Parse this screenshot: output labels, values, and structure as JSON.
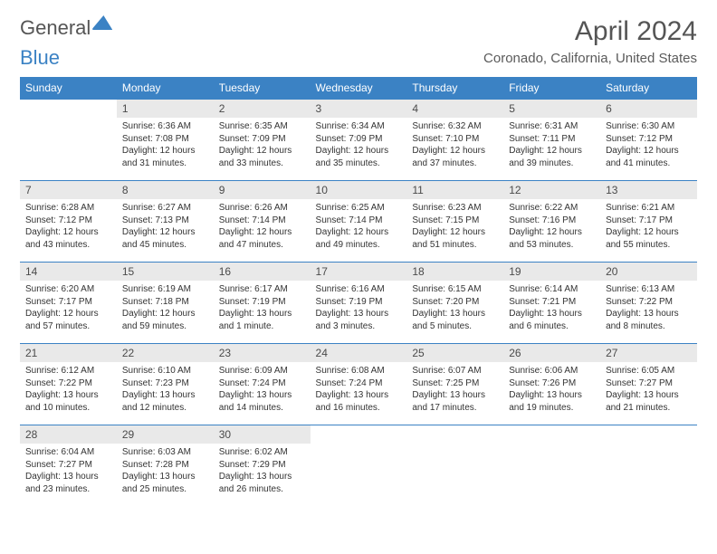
{
  "brand": {
    "part1": "General",
    "part2": "Blue"
  },
  "title": "April 2024",
  "location": "Coronado, California, United States",
  "colors": {
    "header_bg": "#3b82c4",
    "header_text": "#ffffff",
    "daynum_bg": "#e9e9e9",
    "border": "#3b82c4",
    "text": "#333333",
    "title_color": "#555555"
  },
  "days_of_week": [
    "Sunday",
    "Monday",
    "Tuesday",
    "Wednesday",
    "Thursday",
    "Friday",
    "Saturday"
  ],
  "weeks": [
    [
      null,
      {
        "n": "1",
        "sr": "Sunrise: 6:36 AM",
        "ss": "Sunset: 7:08 PM",
        "d1": "Daylight: 12 hours",
        "d2": "and 31 minutes."
      },
      {
        "n": "2",
        "sr": "Sunrise: 6:35 AM",
        "ss": "Sunset: 7:09 PM",
        "d1": "Daylight: 12 hours",
        "d2": "and 33 minutes."
      },
      {
        "n": "3",
        "sr": "Sunrise: 6:34 AM",
        "ss": "Sunset: 7:09 PM",
        "d1": "Daylight: 12 hours",
        "d2": "and 35 minutes."
      },
      {
        "n": "4",
        "sr": "Sunrise: 6:32 AM",
        "ss": "Sunset: 7:10 PM",
        "d1": "Daylight: 12 hours",
        "d2": "and 37 minutes."
      },
      {
        "n": "5",
        "sr": "Sunrise: 6:31 AM",
        "ss": "Sunset: 7:11 PM",
        "d1": "Daylight: 12 hours",
        "d2": "and 39 minutes."
      },
      {
        "n": "6",
        "sr": "Sunrise: 6:30 AM",
        "ss": "Sunset: 7:12 PM",
        "d1": "Daylight: 12 hours",
        "d2": "and 41 minutes."
      }
    ],
    [
      {
        "n": "7",
        "sr": "Sunrise: 6:28 AM",
        "ss": "Sunset: 7:12 PM",
        "d1": "Daylight: 12 hours",
        "d2": "and 43 minutes."
      },
      {
        "n": "8",
        "sr": "Sunrise: 6:27 AM",
        "ss": "Sunset: 7:13 PM",
        "d1": "Daylight: 12 hours",
        "d2": "and 45 minutes."
      },
      {
        "n": "9",
        "sr": "Sunrise: 6:26 AM",
        "ss": "Sunset: 7:14 PM",
        "d1": "Daylight: 12 hours",
        "d2": "and 47 minutes."
      },
      {
        "n": "10",
        "sr": "Sunrise: 6:25 AM",
        "ss": "Sunset: 7:14 PM",
        "d1": "Daylight: 12 hours",
        "d2": "and 49 minutes."
      },
      {
        "n": "11",
        "sr": "Sunrise: 6:23 AM",
        "ss": "Sunset: 7:15 PM",
        "d1": "Daylight: 12 hours",
        "d2": "and 51 minutes."
      },
      {
        "n": "12",
        "sr": "Sunrise: 6:22 AM",
        "ss": "Sunset: 7:16 PM",
        "d1": "Daylight: 12 hours",
        "d2": "and 53 minutes."
      },
      {
        "n": "13",
        "sr": "Sunrise: 6:21 AM",
        "ss": "Sunset: 7:17 PM",
        "d1": "Daylight: 12 hours",
        "d2": "and 55 minutes."
      }
    ],
    [
      {
        "n": "14",
        "sr": "Sunrise: 6:20 AM",
        "ss": "Sunset: 7:17 PM",
        "d1": "Daylight: 12 hours",
        "d2": "and 57 minutes."
      },
      {
        "n": "15",
        "sr": "Sunrise: 6:19 AM",
        "ss": "Sunset: 7:18 PM",
        "d1": "Daylight: 12 hours",
        "d2": "and 59 minutes."
      },
      {
        "n": "16",
        "sr": "Sunrise: 6:17 AM",
        "ss": "Sunset: 7:19 PM",
        "d1": "Daylight: 13 hours",
        "d2": "and 1 minute."
      },
      {
        "n": "17",
        "sr": "Sunrise: 6:16 AM",
        "ss": "Sunset: 7:19 PM",
        "d1": "Daylight: 13 hours",
        "d2": "and 3 minutes."
      },
      {
        "n": "18",
        "sr": "Sunrise: 6:15 AM",
        "ss": "Sunset: 7:20 PM",
        "d1": "Daylight: 13 hours",
        "d2": "and 5 minutes."
      },
      {
        "n": "19",
        "sr": "Sunrise: 6:14 AM",
        "ss": "Sunset: 7:21 PM",
        "d1": "Daylight: 13 hours",
        "d2": "and 6 minutes."
      },
      {
        "n": "20",
        "sr": "Sunrise: 6:13 AM",
        "ss": "Sunset: 7:22 PM",
        "d1": "Daylight: 13 hours",
        "d2": "and 8 minutes."
      }
    ],
    [
      {
        "n": "21",
        "sr": "Sunrise: 6:12 AM",
        "ss": "Sunset: 7:22 PM",
        "d1": "Daylight: 13 hours",
        "d2": "and 10 minutes."
      },
      {
        "n": "22",
        "sr": "Sunrise: 6:10 AM",
        "ss": "Sunset: 7:23 PM",
        "d1": "Daylight: 13 hours",
        "d2": "and 12 minutes."
      },
      {
        "n": "23",
        "sr": "Sunrise: 6:09 AM",
        "ss": "Sunset: 7:24 PM",
        "d1": "Daylight: 13 hours",
        "d2": "and 14 minutes."
      },
      {
        "n": "24",
        "sr": "Sunrise: 6:08 AM",
        "ss": "Sunset: 7:24 PM",
        "d1": "Daylight: 13 hours",
        "d2": "and 16 minutes."
      },
      {
        "n": "25",
        "sr": "Sunrise: 6:07 AM",
        "ss": "Sunset: 7:25 PM",
        "d1": "Daylight: 13 hours",
        "d2": "and 17 minutes."
      },
      {
        "n": "26",
        "sr": "Sunrise: 6:06 AM",
        "ss": "Sunset: 7:26 PM",
        "d1": "Daylight: 13 hours",
        "d2": "and 19 minutes."
      },
      {
        "n": "27",
        "sr": "Sunrise: 6:05 AM",
        "ss": "Sunset: 7:27 PM",
        "d1": "Daylight: 13 hours",
        "d2": "and 21 minutes."
      }
    ],
    [
      {
        "n": "28",
        "sr": "Sunrise: 6:04 AM",
        "ss": "Sunset: 7:27 PM",
        "d1": "Daylight: 13 hours",
        "d2": "and 23 minutes."
      },
      {
        "n": "29",
        "sr": "Sunrise: 6:03 AM",
        "ss": "Sunset: 7:28 PM",
        "d1": "Daylight: 13 hours",
        "d2": "and 25 minutes."
      },
      {
        "n": "30",
        "sr": "Sunrise: 6:02 AM",
        "ss": "Sunset: 7:29 PM",
        "d1": "Daylight: 13 hours",
        "d2": "and 26 minutes."
      },
      null,
      null,
      null,
      null
    ]
  ]
}
